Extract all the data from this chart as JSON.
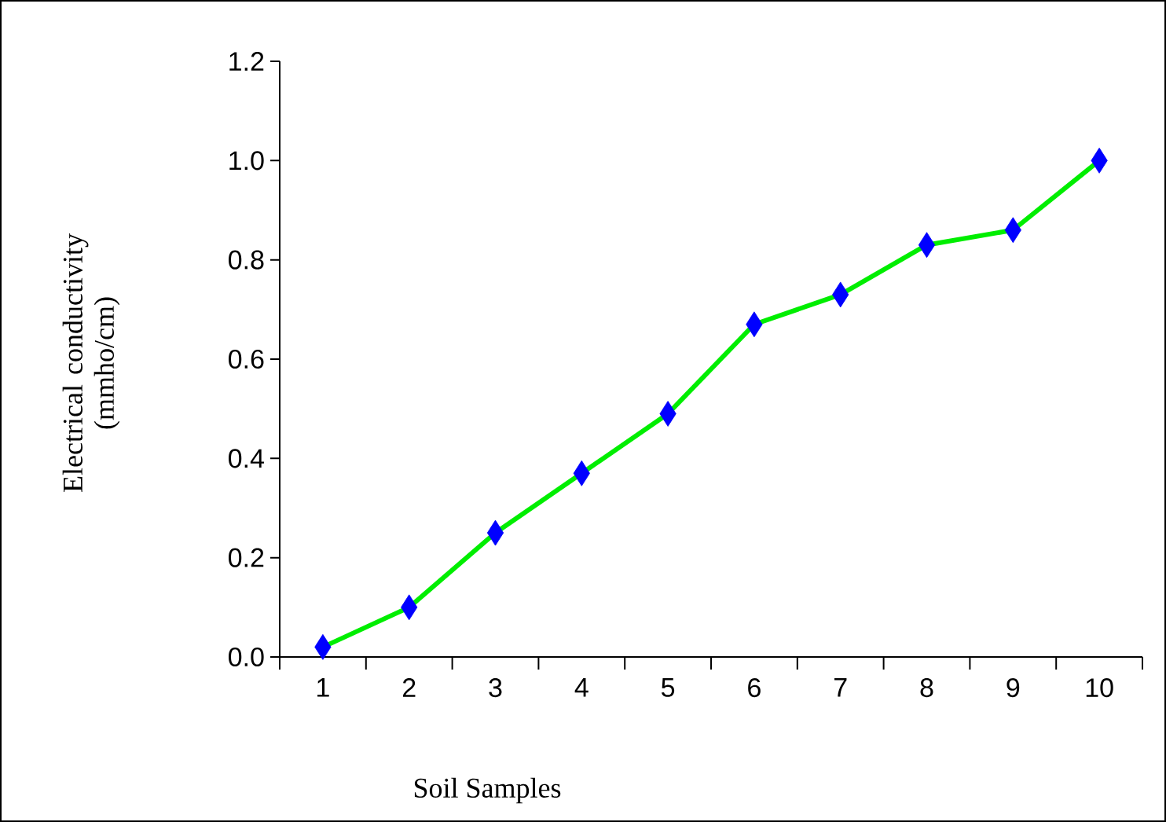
{
  "chart_data": {
    "type": "line",
    "xlabel": "Soil Samples",
    "ylabel": "Electrical conductivity (mmho/cm)",
    "categories": [
      "1",
      "2",
      "3",
      "4",
      "5",
      "6",
      "7",
      "8",
      "9",
      "10"
    ],
    "series": [
      {
        "color": "#00ee00",
        "colors": [
          "#0000ff",
          "#0000ff",
          "#0000ff",
          "#0000ff",
          "#0000ff",
          "#0000ff",
          "#0000ff",
          "#0000ff",
          "#0000ff",
          "#0000ff"
        ],
        "values": [
          0.02,
          0.1,
          0.25,
          0.37,
          0.49,
          0.67,
          0.73,
          0.83,
          0.86,
          1.0
        ]
      }
    ],
    "ylim": [
      0,
      1.2
    ],
    "yticks": [
      {
        "value": 0,
        "label": "0.0"
      },
      {
        "value": 0.2,
        "label": "0.2"
      },
      {
        "value": 0.4,
        "label": "0.4"
      },
      {
        "value": 0.6,
        "label": "0.6"
      },
      {
        "value": 0.8,
        "label": "0.8"
      },
      {
        "value": 1.0,
        "label": "1.0"
      },
      {
        "value": 1.2,
        "label": "1.2"
      }
    ],
    "marker": "diamond",
    "line_style": "solid",
    "grid": false
  }
}
